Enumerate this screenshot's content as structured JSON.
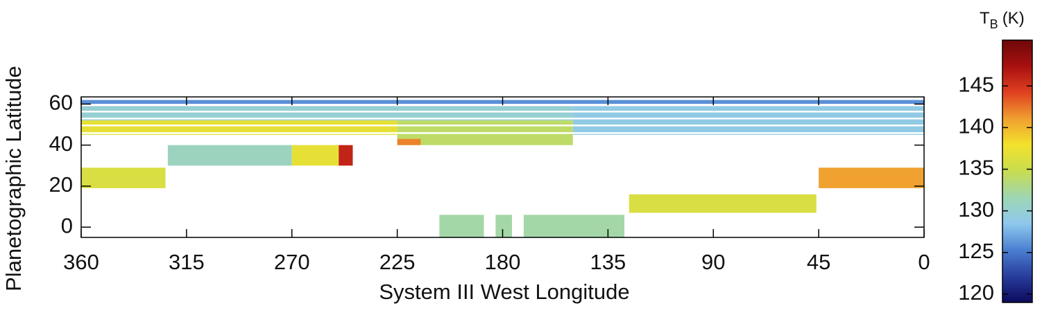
{
  "chart_data": {
    "type": "map",
    "xlabel": "System III West Longitude",
    "ylabel": "Planetographic Latitude",
    "colorbar_label": {
      "main": "T",
      "sub": "B",
      "unit": "(K)"
    },
    "xlim": [
      360,
      0
    ],
    "ylim": [
      -5,
      63.5
    ],
    "xticks": [
      360,
      315,
      270,
      225,
      180,
      135,
      90,
      45,
      0
    ],
    "yticks": [
      0,
      20,
      40,
      60
    ],
    "clim": [
      119,
      150.5
    ],
    "cticks": [
      120,
      125,
      130,
      135,
      140,
      145
    ],
    "colormap": [
      "#0c0a5c",
      "#283d9c",
      "#4a7fd0",
      "#8ec8ee",
      "#9ed6b4",
      "#c8dc50",
      "#f2e22c",
      "#f0a030",
      "#e04020",
      "#a81010",
      "#6e0808"
    ],
    "patches": [
      {
        "lon": [
          360,
          0
        ],
        "lat": [
          59.5,
          62
        ],
        "value": 126
      },
      {
        "lon": [
          360,
          150
        ],
        "lat": [
          52,
          59
        ],
        "value": 130
      },
      {
        "lon": [
          150,
          0
        ],
        "lat": [
          45,
          59
        ],
        "value": 129
      },
      {
        "lon": [
          360,
          225
        ],
        "lat": [
          45,
          52
        ],
        "value": 137
      },
      {
        "lon": [
          225,
          150
        ],
        "lat": [
          40,
          52
        ],
        "value": 134
      },
      {
        "lon": [
          225,
          215
        ],
        "lat": [
          40,
          43
        ],
        "value": 142
      },
      {
        "lon": [
          323,
          270
        ],
        "lat": [
          30,
          40
        ],
        "value": 131
      },
      {
        "lon": [
          270,
          250
        ],
        "lat": [
          30,
          40
        ],
        "value": 137
      },
      {
        "lon": [
          250,
          244
        ],
        "lat": [
          30,
          40
        ],
        "value": 146
      },
      {
        "lon": [
          360,
          324
        ],
        "lat": [
          19,
          29
        ],
        "value": 136
      },
      {
        "lon": [
          126,
          46
        ],
        "lat": [
          7,
          16
        ],
        "value": 136
      },
      {
        "lon": [
          45,
          0
        ],
        "lat": [
          19,
          29
        ],
        "value": 141
      },
      {
        "lon": [
          207,
          188
        ],
        "lat": [
          -5,
          6
        ],
        "value": 132
      },
      {
        "lon": [
          183,
          176
        ],
        "lat": [
          -5,
          6
        ],
        "value": 132
      },
      {
        "lon": [
          171,
          128
        ],
        "lat": [
          -5,
          6
        ],
        "value": 132
      }
    ]
  }
}
